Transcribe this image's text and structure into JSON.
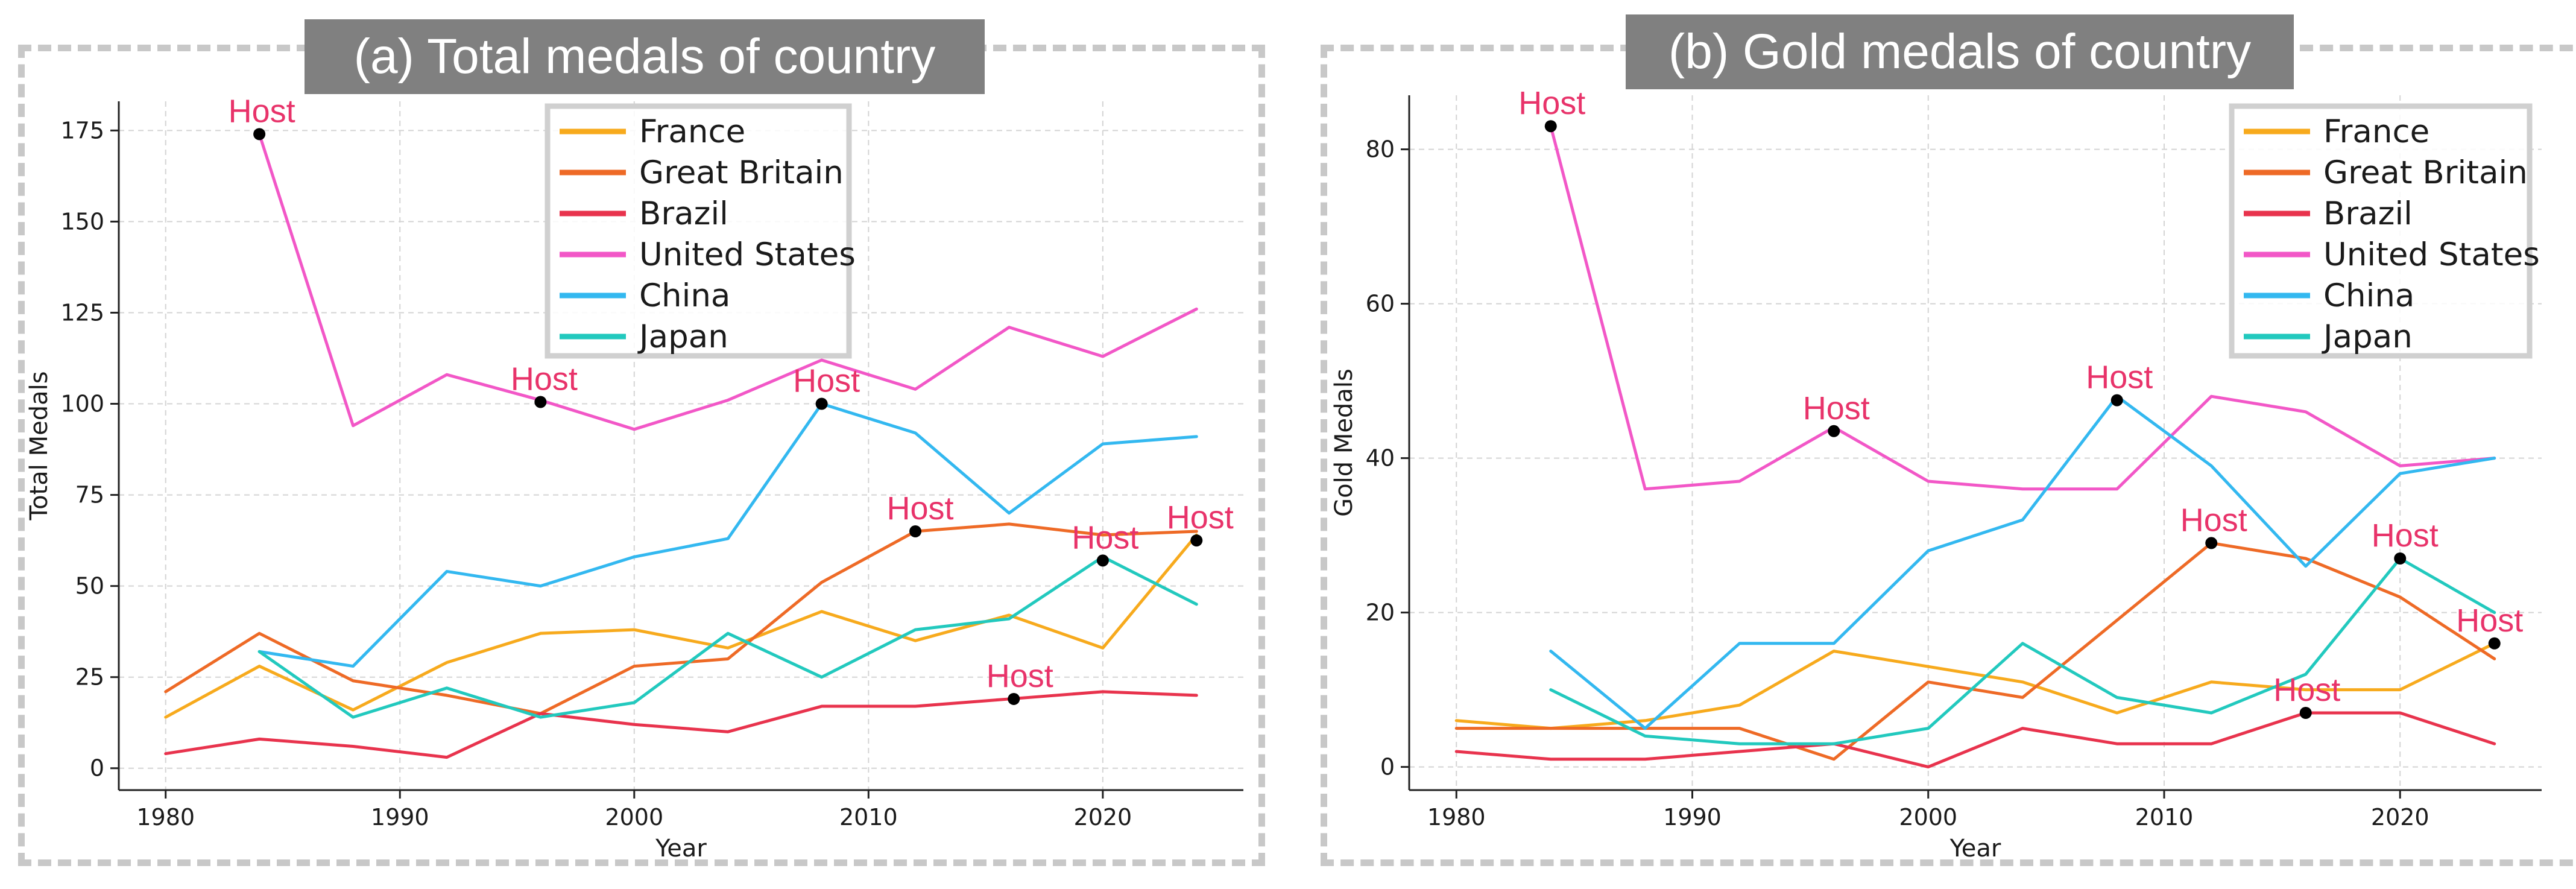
{
  "charts": [
    {
      "id": "total",
      "panel_title": "(a) Total medals of country",
      "chart_data": {
        "type": "line",
        "xlabel": "Year",
        "ylabel": "Total Medals",
        "xlim": [
          1978,
          2026
        ],
        "ylim": [
          -6,
          183
        ],
        "xticks": [
          1980,
          1990,
          2000,
          2010,
          2020
        ],
        "yticks": [
          0,
          25,
          50,
          75,
          100,
          125,
          150,
          175
        ],
        "grid": true,
        "legend": "top-center",
        "series": [
          {
            "name": "France",
            "color": "#f7aa1d",
            "x": [
              1980,
              1984,
              1988,
              1992,
              1996,
              2000,
              2004,
              2008,
              2012,
              2016,
              2020,
              2024
            ],
            "values": [
              14,
              28,
              16,
              29,
              37,
              38,
              33,
              43,
              35,
              42,
              33,
              64
            ]
          },
          {
            "name": "Great Britain",
            "color": "#ee6a26",
            "x": [
              1980,
              1984,
              1988,
              1992,
              1996,
              2000,
              2004,
              2008,
              2012,
              2016,
              2020,
              2024
            ],
            "values": [
              21,
              37,
              24,
              20,
              15,
              28,
              30,
              51,
              65,
              67,
              64,
              65
            ]
          },
          {
            "name": "Brazil",
            "color": "#e8334d",
            "x": [
              1980,
              1984,
              1988,
              1992,
              1996,
              2000,
              2004,
              2008,
              2012,
              2016,
              2020,
              2024
            ],
            "values": [
              4,
              8,
              6,
              3,
              15,
              12,
              10,
              17,
              17,
              19,
              21,
              20
            ]
          },
          {
            "name": "United States",
            "color": "#f257c7",
            "x": [
              1984,
              1988,
              1992,
              1996,
              2000,
              2004,
              2008,
              2012,
              2016,
              2020,
              2024
            ],
            "values": [
              174,
              94,
              108,
              101,
              93,
              101,
              112,
              104,
              121,
              113,
              126
            ]
          },
          {
            "name": "China",
            "color": "#33b8f0",
            "x": [
              1984,
              1988,
              1992,
              1996,
              2000,
              2004,
              2008,
              2012,
              2016,
              2020,
              2024
            ],
            "values": [
              32,
              28,
              54,
              50,
              58,
              63,
              100,
              92,
              70,
              89,
              91
            ]
          },
          {
            "name": "Japan",
            "color": "#22c9be",
            "x": [
              1984,
              1988,
              1992,
              1996,
              2000,
              2004,
              2008,
              2012,
              2016,
              2020,
              2024
            ],
            "values": [
              32,
              14,
              22,
              14,
              18,
              37,
              25,
              38,
              41,
              58,
              45
            ]
          }
        ],
        "annotations": [
          {
            "text": "Host",
            "x": 1984,
            "y": 174,
            "dx": 4,
            "dy": -20
          },
          {
            "text": "Host",
            "x": 1996,
            "y": 100.5,
            "dx": 6,
            "dy": -20
          },
          {
            "text": "Host",
            "x": 2008,
            "y": 100,
            "dx": 8,
            "dy": -20
          },
          {
            "text": "Host",
            "x": 2012,
            "y": 65,
            "dx": 8,
            "dy": -20
          },
          {
            "text": "Host",
            "x": 2016.2,
            "y": 19,
            "dx": 10,
            "dy": -20
          },
          {
            "text": "Host",
            "x": 2020,
            "y": 57,
            "dx": 4,
            "dy": -20
          },
          {
            "text": "Host",
            "x": 2024,
            "y": 62.5,
            "dx": 6,
            "dy": -20
          }
        ]
      }
    },
    {
      "id": "gold",
      "panel_title": "(b) Gold medals of country",
      "chart_data": {
        "type": "line",
        "xlabel": "Year",
        "ylabel": "Gold Medals",
        "xlim": [
          1978,
          2026
        ],
        "ylim": [
          -3,
          87
        ],
        "xticks": [
          1980,
          1990,
          2000,
          2010,
          2020
        ],
        "yticks": [
          0,
          20,
          40,
          60,
          80
        ],
        "grid": true,
        "legend": "top-right",
        "series": [
          {
            "name": "France",
            "color": "#f7aa1d",
            "x": [
              1980,
              1984,
              1988,
              1992,
              1996,
              2000,
              2004,
              2008,
              2012,
              2016,
              2020,
              2024
            ],
            "values": [
              6,
              5,
              6,
              8,
              15,
              13,
              11,
              7,
              11,
              10,
              10,
              16
            ]
          },
          {
            "name": "Great Britain",
            "color": "#ee6a26",
            "x": [
              1980,
              1984,
              1988,
              1992,
              1996,
              2000,
              2004,
              2008,
              2012,
              2016,
              2020,
              2024
            ],
            "values": [
              5,
              5,
              5,
              5,
              1,
              11,
              9,
              19,
              29,
              27,
              22,
              14
            ]
          },
          {
            "name": "Brazil",
            "color": "#e8334d",
            "x": [
              1980,
              1984,
              1988,
              1992,
              1996,
              2000,
              2004,
              2008,
              2012,
              2016,
              2020,
              2024
            ],
            "values": [
              2,
              1,
              1,
              2,
              3,
              0,
              5,
              3,
              3,
              7,
              7,
              3
            ]
          },
          {
            "name": "United States",
            "color": "#f257c7",
            "x": [
              1984,
              1988,
              1992,
              1996,
              2000,
              2004,
              2008,
              2012,
              2016,
              2020,
              2024
            ],
            "values": [
              83,
              36,
              37,
              44,
              37,
              36,
              36,
              48,
              46,
              39,
              40
            ]
          },
          {
            "name": "China",
            "color": "#33b8f0",
            "x": [
              1984,
              1988,
              1992,
              1996,
              2000,
              2004,
              2008,
              2012,
              2016,
              2020,
              2024
            ],
            "values": [
              15,
              5,
              16,
              16,
              28,
              32,
              48,
              39,
              26,
              38,
              40
            ]
          },
          {
            "name": "Japan",
            "color": "#22c9be",
            "x": [
              1984,
              1988,
              1992,
              1996,
              2000,
              2004,
              2008,
              2012,
              2016,
              2020,
              2024
            ],
            "values": [
              10,
              4,
              3,
              3,
              5,
              16,
              9,
              7,
              12,
              27,
              20
            ]
          }
        ],
        "annotations": [
          {
            "text": "Host",
            "x": 1984,
            "y": 83,
            "dx": 2,
            "dy": -20
          },
          {
            "text": "Host",
            "x": 1996,
            "y": 43.5,
            "dx": 4,
            "dy": -20
          },
          {
            "text": "Host",
            "x": 2008,
            "y": 47.5,
            "dx": 4,
            "dy": -20
          },
          {
            "text": "Host",
            "x": 2012,
            "y": 29,
            "dx": 4,
            "dy": -20
          },
          {
            "text": "Host",
            "x": 2016,
            "y": 7,
            "dx": 2,
            "dy": -20
          },
          {
            "text": "Host",
            "x": 2020,
            "y": 27,
            "dx": 8,
            "dy": -20
          },
          {
            "text": "Host",
            "x": 2024,
            "y": 16,
            "dx": -8,
            "dy": -20
          }
        ]
      }
    }
  ]
}
